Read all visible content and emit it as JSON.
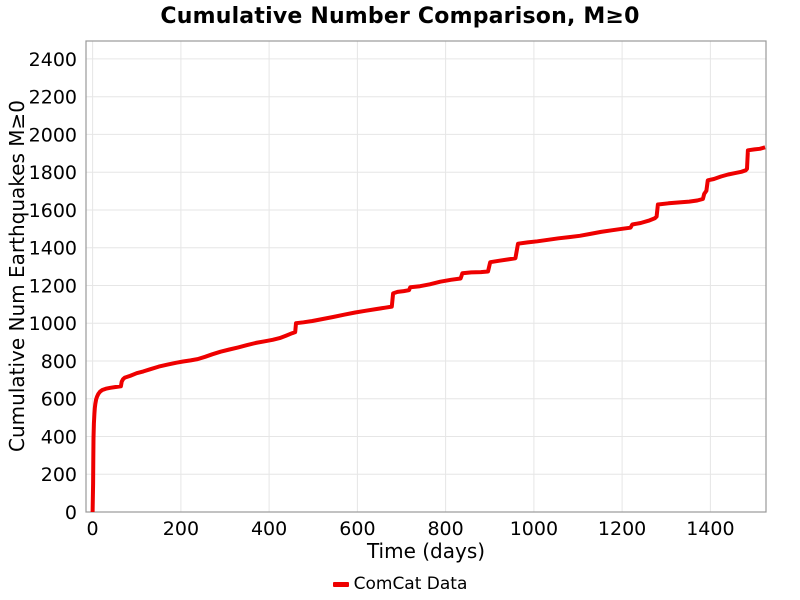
{
  "chart_data": {
    "type": "line",
    "title": "Cumulative Number Comparison, M≥0",
    "xlabel": "Time (days)",
    "ylabel": "Cumulative Num Earthquakes M≥0",
    "xlim": [
      -15,
      1526
    ],
    "ylim": [
      0,
      2495
    ],
    "x_ticks": [
      0,
      200,
      400,
      600,
      800,
      1000,
      1200,
      1400
    ],
    "y_ticks": [
      0,
      200,
      400,
      600,
      800,
      1000,
      1200,
      1400,
      1600,
      1800,
      2000,
      2200,
      2400
    ],
    "grid": true,
    "grid_color": "#e6e6e6",
    "spine_color": "#999999",
    "background": "#ffffff",
    "legend": {
      "position": "bottom-center",
      "entries": [
        {
          "label": "ComCat Data",
          "color": "#ee0000"
        }
      ]
    },
    "series": [
      {
        "name": "ComCat Data",
        "color": "#ee0000",
        "line_width": 4,
        "points": [
          [
            0,
            0
          ],
          [
            1,
            150
          ],
          [
            1.5,
            280
          ],
          [
            2,
            390
          ],
          [
            3,
            470
          ],
          [
            4,
            520
          ],
          [
            5,
            550
          ],
          [
            6,
            572
          ],
          [
            8,
            596
          ],
          [
            10,
            611
          ],
          [
            13,
            626
          ],
          [
            17,
            638
          ],
          [
            22,
            646
          ],
          [
            30,
            653
          ],
          [
            40,
            658
          ],
          [
            52,
            662
          ],
          [
            64,
            666
          ],
          [
            66,
            690
          ],
          [
            69,
            704
          ],
          [
            73,
            712
          ],
          [
            85,
            721
          ],
          [
            100,
            735
          ],
          [
            115,
            745
          ],
          [
            130,
            756
          ],
          [
            150,
            770
          ],
          [
            170,
            781
          ],
          [
            190,
            791
          ],
          [
            205,
            797
          ],
          [
            222,
            803
          ],
          [
            238,
            810
          ],
          [
            255,
            822
          ],
          [
            272,
            836
          ],
          [
            290,
            849
          ],
          [
            310,
            861
          ],
          [
            330,
            872
          ],
          [
            350,
            884
          ],
          [
            370,
            896
          ],
          [
            390,
            904
          ],
          [
            408,
            912
          ],
          [
            424,
            921
          ],
          [
            438,
            934
          ],
          [
            452,
            947
          ],
          [
            459,
            953
          ],
          [
            461,
            1000
          ],
          [
            478,
            1005
          ],
          [
            498,
            1012
          ],
          [
            520,
            1022
          ],
          [
            545,
            1033
          ],
          [
            570,
            1045
          ],
          [
            595,
            1057
          ],
          [
            618,
            1066
          ],
          [
            642,
            1075
          ],
          [
            663,
            1082
          ],
          [
            678,
            1088
          ],
          [
            681,
            1158
          ],
          [
            691,
            1166
          ],
          [
            705,
            1170
          ],
          [
            717,
            1175
          ],
          [
            720,
            1191
          ],
          [
            742,
            1196
          ],
          [
            764,
            1206
          ],
          [
            788,
            1220
          ],
          [
            812,
            1230
          ],
          [
            834,
            1237
          ],
          [
            838,
            1265
          ],
          [
            858,
            1269
          ],
          [
            880,
            1271
          ],
          [
            896,
            1274
          ],
          [
            901,
            1323
          ],
          [
            922,
            1331
          ],
          [
            942,
            1338
          ],
          [
            958,
            1344
          ],
          [
            964,
            1421
          ],
          [
            986,
            1428
          ],
          [
            1008,
            1434
          ],
          [
            1032,
            1442
          ],
          [
            1056,
            1450
          ],
          [
            1080,
            1456
          ],
          [
            1104,
            1463
          ],
          [
            1128,
            1473
          ],
          [
            1152,
            1484
          ],
          [
            1176,
            1492
          ],
          [
            1200,
            1500
          ],
          [
            1219,
            1506
          ],
          [
            1223,
            1523
          ],
          [
            1242,
            1531
          ],
          [
            1260,
            1543
          ],
          [
            1274,
            1556
          ],
          [
            1278,
            1565
          ],
          [
            1281,
            1629
          ],
          [
            1305,
            1635
          ],
          [
            1330,
            1640
          ],
          [
            1352,
            1644
          ],
          [
            1370,
            1650
          ],
          [
            1383,
            1658
          ],
          [
            1386,
            1685
          ],
          [
            1391,
            1702
          ],
          [
            1394,
            1757
          ],
          [
            1408,
            1764
          ],
          [
            1424,
            1777
          ],
          [
            1440,
            1788
          ],
          [
            1456,
            1795
          ],
          [
            1470,
            1802
          ],
          [
            1480,
            1810
          ],
          [
            1483,
            1818
          ],
          [
            1485,
            1916
          ],
          [
            1500,
            1921
          ],
          [
            1512,
            1924
          ],
          [
            1524,
            1932
          ]
        ]
      }
    ]
  }
}
